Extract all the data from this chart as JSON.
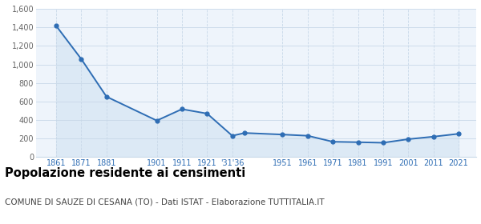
{
  "years": [
    1861,
    1871,
    1881,
    1901,
    1911,
    1921,
    1931,
    1936,
    1951,
    1961,
    1971,
    1981,
    1991,
    2001,
    2011,
    2021
  ],
  "population": [
    1417,
    1057,
    651,
    392,
    516,
    468,
    228,
    258,
    241,
    228,
    163,
    158,
    152,
    191,
    218,
    249
  ],
  "line_color": "#2e6db4",
  "fill_color": "#dce9f5",
  "marker_color": "#2e6db4",
  "bg_color": "#eef4fb",
  "grid_color": "#c8d8e8",
  "ylim": [
    0,
    1600
  ],
  "yticks": [
    0,
    200,
    400,
    600,
    800,
    1000,
    1200,
    1400,
    1600
  ],
  "xlim_left": 1853,
  "xlim_right": 2028,
  "xtick_positions": [
    1861,
    1871,
    1881,
    1901,
    1911,
    1921,
    1931,
    1951,
    1961,
    1971,
    1981,
    1991,
    2001,
    2011,
    2021
  ],
  "xtick_labels": [
    "1861",
    "1871",
    "1881",
    "1901",
    "1911",
    "1921",
    "'31'36",
    "1951",
    "1961",
    "1971",
    "1981",
    "1991",
    "2001",
    "2011",
    "2021"
  ],
  "title": "Popolazione residente ai censimenti",
  "subtitle": "COMUNE DI SAUZE DI CESANA (TO) - Dati ISTAT - Elaborazione TUTTITALIA.IT",
  "title_fontsize": 10.5,
  "subtitle_fontsize": 7.5,
  "tick_fontsize": 7,
  "ytick_color": "#666666",
  "xtick_color": "#2e6db4"
}
